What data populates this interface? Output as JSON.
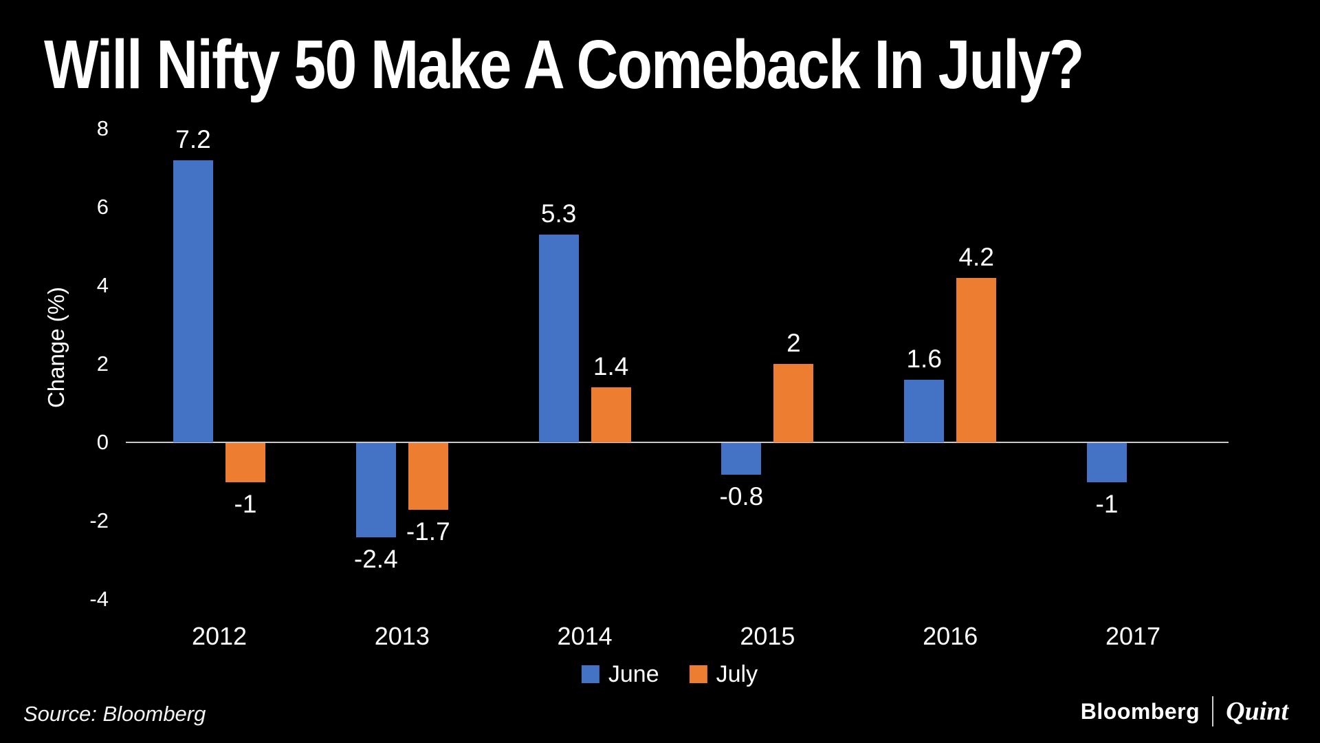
{
  "title": "Will Nifty 50 Make A Comeback In July?",
  "source_text": "Source: Bloomberg",
  "branding": {
    "bloomberg": "Bloomberg",
    "quint": "Quint"
  },
  "colors": {
    "background": "#000000",
    "june": "#4472C4",
    "july": "#ED7D31",
    "axis_line": "#C9C9C9",
    "text": "#FFFFFF"
  },
  "chart_data": {
    "type": "bar",
    "title": "Will Nifty 50 Make A Comeback In July?",
    "categories": [
      "2012",
      "2013",
      "2014",
      "2015",
      "2016",
      "2017"
    ],
    "series": [
      {
        "name": "June",
        "color": "#4472C4",
        "values": [
          7.2,
          -2.4,
          5.3,
          -0.8,
          1.6,
          -1
        ]
      },
      {
        "name": "July",
        "color": "#ED7D31",
        "values": [
          -1,
          -1.7,
          1.4,
          2,
          4.2,
          null
        ]
      }
    ],
    "xlabel": "",
    "ylabel": "Change (%)",
    "yticks": [
      8,
      6,
      4,
      2,
      0,
      -2,
      -4
    ],
    "ylim": [
      -4.5,
      8.5
    ],
    "grid": false,
    "legend_position": "bottom",
    "data_labels": true
  }
}
